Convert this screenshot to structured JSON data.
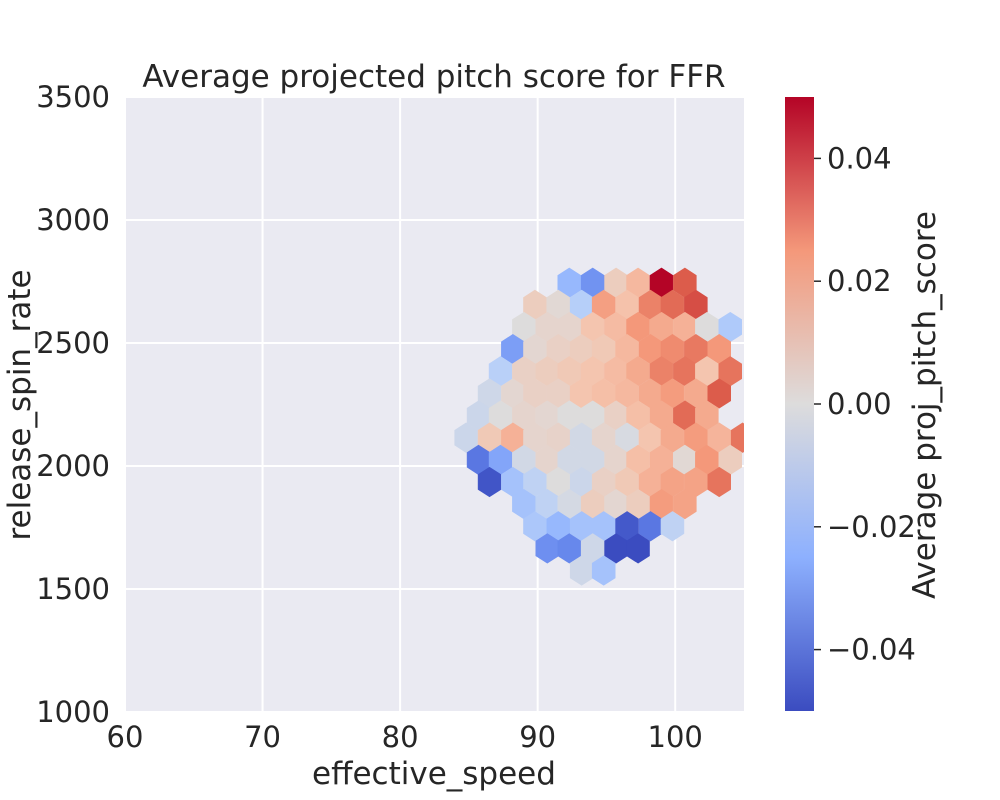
{
  "chart_data": {
    "type": "heatmap",
    "subtype": "hexbin",
    "title": "Average projected pitch score for FFR",
    "xlabel": "effective_speed",
    "ylabel": "release_spin_rate",
    "colorbar_label": "Average proj_pitch_score",
    "xlim": [
      60,
      105
    ],
    "ylim": [
      1000,
      3500
    ],
    "x_ticks": [
      60,
      70,
      80,
      90,
      100
    ],
    "y_ticks": [
      1000,
      1500,
      2000,
      2500,
      3000,
      3500
    ],
    "colorbar_ticks": [
      -0.04,
      -0.02,
      0.0,
      0.02,
      0.04
    ],
    "colorbar_tick_labels": [
      "−0.04",
      "−0.02",
      "0.00",
      "0.02",
      "0.04"
    ],
    "clim": [
      -0.05,
      0.05
    ],
    "colormap": "coolwarm",
    "grid": true,
    "plot_background": "#eaeaf2",
    "hex_dx": 1.667,
    "hex_dy": 90,
    "cells": [
      [
        92.3,
        2745,
        -0.022
      ],
      [
        94.0,
        2745,
        -0.033
      ],
      [
        95.7,
        2745,
        0.008
      ],
      [
        97.3,
        2745,
        0.016
      ],
      [
        99.0,
        2745,
        0.05
      ],
      [
        100.7,
        2745,
        0.038
      ],
      [
        89.8,
        2655,
        0.008
      ],
      [
        91.5,
        2655,
        0.002
      ],
      [
        93.2,
        2655,
        -0.013
      ],
      [
        94.8,
        2655,
        0.023
      ],
      [
        96.5,
        2655,
        0.013
      ],
      [
        98.2,
        2655,
        0.03
      ],
      [
        99.8,
        2655,
        0.035
      ],
      [
        101.5,
        2655,
        0.04
      ],
      [
        89.0,
        2565,
        0.0
      ],
      [
        90.7,
        2565,
        0.004
      ],
      [
        92.3,
        2565,
        0.004
      ],
      [
        94.0,
        2565,
        0.012
      ],
      [
        95.7,
        2565,
        0.015
      ],
      [
        97.3,
        2565,
        0.025
      ],
      [
        99.0,
        2565,
        0.02
      ],
      [
        100.7,
        2565,
        0.018
      ],
      [
        102.3,
        2565,
        0.0
      ],
      [
        104.0,
        2565,
        -0.015
      ],
      [
        88.2,
        2475,
        -0.03
      ],
      [
        89.8,
        2475,
        0.003
      ],
      [
        91.5,
        2475,
        0.006
      ],
      [
        93.2,
        2475,
        0.008
      ],
      [
        94.8,
        2475,
        0.01
      ],
      [
        96.5,
        2475,
        0.016
      ],
      [
        98.2,
        2475,
        0.025
      ],
      [
        99.8,
        2475,
        0.028
      ],
      [
        101.5,
        2475,
        0.032
      ],
      [
        103.2,
        2475,
        0.025
      ],
      [
        87.3,
        2385,
        -0.012
      ],
      [
        89.0,
        2385,
        0.006
      ],
      [
        90.7,
        2385,
        0.008
      ],
      [
        92.3,
        2385,
        0.01
      ],
      [
        94.0,
        2385,
        0.012
      ],
      [
        95.7,
        2385,
        0.015
      ],
      [
        97.3,
        2385,
        0.02
      ],
      [
        99.0,
        2385,
        0.03
      ],
      [
        100.7,
        2385,
        0.033
      ],
      [
        102.3,
        2385,
        0.012
      ],
      [
        104.0,
        2385,
        0.033
      ],
      [
        86.5,
        2295,
        -0.005
      ],
      [
        88.2,
        2295,
        0.003
      ],
      [
        89.8,
        2295,
        0.006
      ],
      [
        91.5,
        2295,
        0.006
      ],
      [
        93.2,
        2295,
        0.012
      ],
      [
        94.8,
        2295,
        0.014
      ],
      [
        96.5,
        2295,
        0.016
      ],
      [
        98.2,
        2295,
        0.02
      ],
      [
        99.8,
        2295,
        0.024
      ],
      [
        101.5,
        2295,
        0.02
      ],
      [
        103.2,
        2295,
        0.038
      ],
      [
        85.7,
        2205,
        -0.006
      ],
      [
        87.3,
        2205,
        0.0
      ],
      [
        89.0,
        2205,
        0.004
      ],
      [
        90.7,
        2205,
        0.003
      ],
      [
        92.3,
        2205,
        0.0
      ],
      [
        94.0,
        2205,
        0.0
      ],
      [
        95.7,
        2205,
        0.006
      ],
      [
        97.3,
        2205,
        0.014
      ],
      [
        99.0,
        2205,
        0.02
      ],
      [
        100.7,
        2205,
        0.035
      ],
      [
        102.3,
        2205,
        0.02
      ],
      [
        84.8,
        2115,
        -0.006
      ],
      [
        86.5,
        2115,
        0.01
      ],
      [
        88.2,
        2115,
        0.018
      ],
      [
        89.8,
        2115,
        0.004
      ],
      [
        91.5,
        2115,
        0.005
      ],
      [
        93.2,
        2115,
        -0.004
      ],
      [
        94.8,
        2115,
        0.004
      ],
      [
        96.5,
        2115,
        -0.002
      ],
      [
        98.2,
        2115,
        0.012
      ],
      [
        99.8,
        2115,
        0.02
      ],
      [
        101.5,
        2115,
        0.024
      ],
      [
        103.2,
        2115,
        0.017
      ],
      [
        104.9,
        2115,
        0.033
      ],
      [
        85.7,
        2025,
        -0.04
      ],
      [
        87.3,
        2025,
        -0.028
      ],
      [
        89.0,
        2025,
        -0.004
      ],
      [
        90.7,
        2025,
        0.004
      ],
      [
        92.3,
        2025,
        -0.004
      ],
      [
        94.0,
        2025,
        -0.004
      ],
      [
        95.7,
        2025,
        0.004
      ],
      [
        97.3,
        2025,
        0.014
      ],
      [
        99.0,
        2025,
        0.018
      ],
      [
        100.7,
        2025,
        0.002
      ],
      [
        102.3,
        2025,
        0.025
      ],
      [
        104.0,
        2025,
        0.008
      ],
      [
        86.5,
        1935,
        -0.048
      ],
      [
        88.2,
        1935,
        -0.018
      ],
      [
        89.8,
        1935,
        -0.01
      ],
      [
        91.5,
        1935,
        0.0
      ],
      [
        93.2,
        1935,
        -0.006
      ],
      [
        94.8,
        1935,
        0.006
      ],
      [
        96.5,
        1935,
        0.01
      ],
      [
        98.2,
        1935,
        0.018
      ],
      [
        99.8,
        1935,
        0.022
      ],
      [
        101.5,
        1935,
        0.022
      ],
      [
        103.2,
        1935,
        0.033
      ],
      [
        89.0,
        1845,
        -0.018
      ],
      [
        90.7,
        1845,
        -0.01
      ],
      [
        92.3,
        1845,
        -0.003
      ],
      [
        94.0,
        1845,
        0.008
      ],
      [
        95.7,
        1845,
        0.003
      ],
      [
        97.3,
        1845,
        0.008
      ],
      [
        99.0,
        1845,
        0.024
      ],
      [
        100.7,
        1845,
        0.022
      ],
      [
        89.8,
        1755,
        -0.016
      ],
      [
        91.5,
        1755,
        -0.022
      ],
      [
        93.2,
        1755,
        -0.018
      ],
      [
        94.8,
        1755,
        -0.018
      ],
      [
        96.5,
        1755,
        -0.047
      ],
      [
        98.2,
        1755,
        -0.04
      ],
      [
        99.8,
        1755,
        -0.01
      ],
      [
        90.7,
        1665,
        -0.034
      ],
      [
        92.3,
        1665,
        -0.036
      ],
      [
        94.0,
        1665,
        -0.005
      ],
      [
        95.7,
        1665,
        -0.05
      ],
      [
        97.3,
        1665,
        -0.05
      ],
      [
        93.2,
        1575,
        -0.005
      ],
      [
        94.8,
        1575,
        -0.018
      ]
    ]
  }
}
